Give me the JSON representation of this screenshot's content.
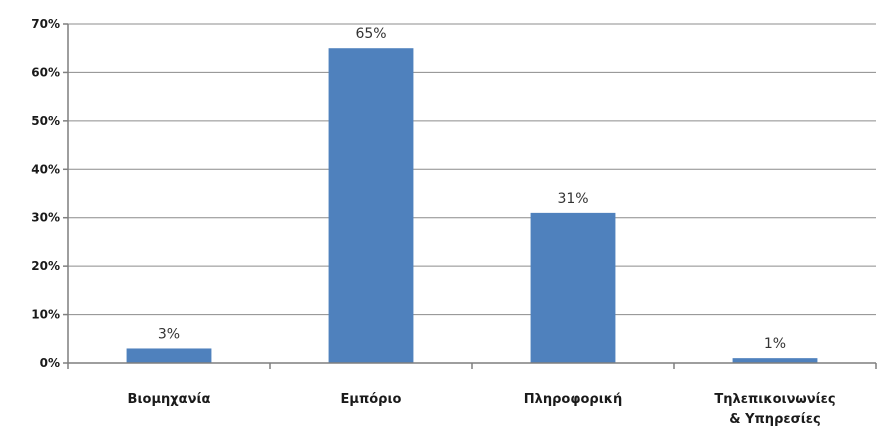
{
  "chart_data": {
    "type": "bar",
    "title": "",
    "xlabel": "",
    "ylabel": "",
    "categories": [
      [
        "Βιομηχανία"
      ],
      [
        "Εμπόριο"
      ],
      [
        "Πληροφορική"
      ],
      [
        "Τηλεπικοινωνίες",
        "& Υπηρεσίες"
      ]
    ],
    "values": [
      3,
      65,
      31,
      1
    ],
    "data_labels": [
      "3%",
      "65%",
      "31%",
      "1%"
    ],
    "yticks": [
      "0%",
      "10%",
      "20%",
      "30%",
      "40%",
      "50%",
      "60%",
      "70%"
    ],
    "ylim": [
      0,
      70
    ],
    "grid": true,
    "legend": "none",
    "bar_color": "#4f81bd"
  }
}
